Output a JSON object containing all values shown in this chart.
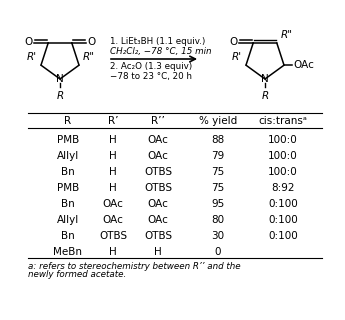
{
  "table_headers": [
    "R",
    "R’",
    "R’’",
    "% yield",
    "cis:transᵃ"
  ],
  "table_rows": [
    [
      "PMB",
      "H",
      "OAc",
      "88",
      "100:0"
    ],
    [
      "Allyl",
      "H",
      "OAc",
      "79",
      "100:0"
    ],
    [
      "Bn",
      "H",
      "OTBS",
      "75",
      "100:0"
    ],
    [
      "PMB",
      "H",
      "OTBS",
      "75",
      "8:92"
    ],
    [
      "Bn",
      "OAc",
      "OAc",
      "95",
      "0:100"
    ],
    [
      "Allyl",
      "OAc",
      "OAc",
      "80",
      "0:100"
    ],
    [
      "Bn",
      "OTBS",
      "OTBS",
      "30",
      "0:100"
    ],
    [
      "MeBn",
      "H",
      "H",
      "0",
      ""
    ]
  ],
  "footnote_line1": "a: refers to stereochemistry between R’’ and the",
  "footnote_line2": "newly formed acetate.",
  "reaction_line1": "1. LiEt₃BH (1.1 equiv.)",
  "reaction_line2": "CH₂Cl₂, −78 °C, 15 min",
  "reaction_line3": "2. Ac₂O (1.3 equiv)",
  "reaction_line4": "−78 to 23 °C, 20 h",
  "bg_color": "#ffffff"
}
